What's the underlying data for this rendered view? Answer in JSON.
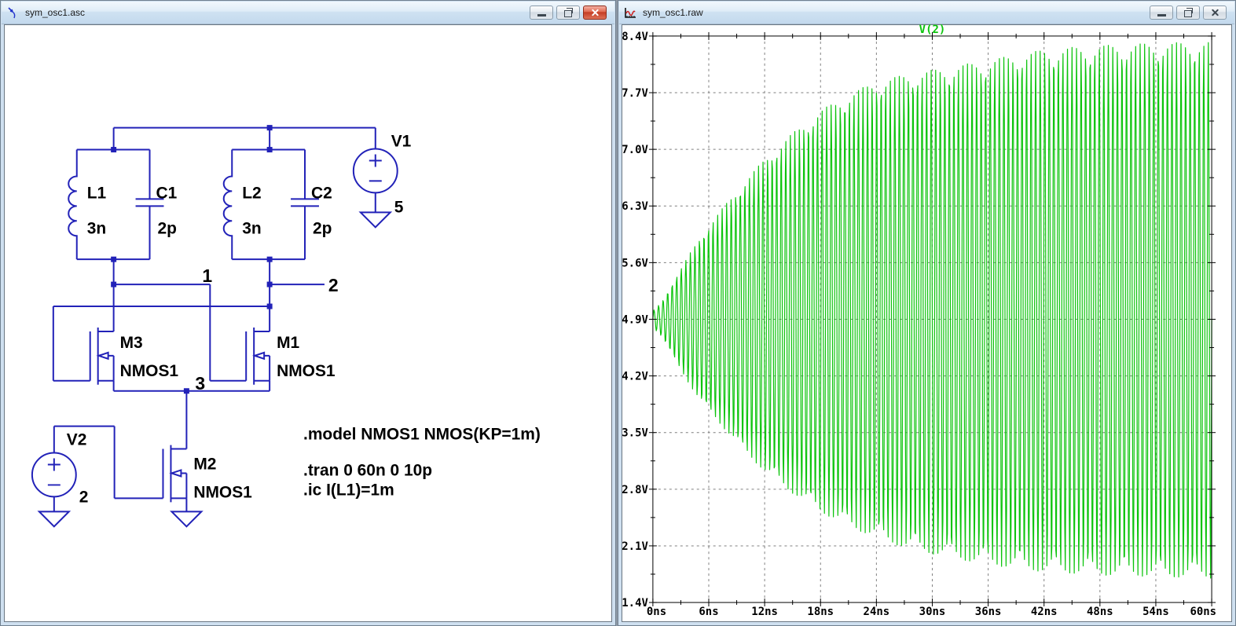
{
  "left_window": {
    "title": "sym_osc1.asc",
    "window_controls": [
      "minimize",
      "restore",
      "close"
    ],
    "schematic": {
      "wire_color": "#2222b8",
      "components": {
        "L1": {
          "ref": "L1",
          "value": "3n"
        },
        "C1": {
          "ref": "C1",
          "value": "2p"
        },
        "L2": {
          "ref": "L2",
          "value": "3n"
        },
        "C2": {
          "ref": "C2",
          "value": "2p"
        },
        "V1": {
          "ref": "V1",
          "value": "5"
        },
        "V2": {
          "ref": "V2",
          "value": "2"
        },
        "M1": {
          "ref": "M1",
          "model": "NMOS1"
        },
        "M2": {
          "ref": "M2",
          "model": "NMOS1"
        },
        "M3": {
          "ref": "M3",
          "model": "NMOS1"
        }
      },
      "node_labels": [
        "1",
        "2",
        "3"
      ],
      "directives": [
        ".model NMOS1 NMOS(KP=1m)",
        ".tran 0 60n 0 10p",
        ".ic I(L1)=1m"
      ]
    }
  },
  "right_window": {
    "title": "sym_osc1.raw",
    "window_controls": [
      "minimize",
      "restore",
      "close"
    ],
    "chart_data": {
      "type": "line",
      "title": "V(2)",
      "legend": [
        "V(2)"
      ],
      "legend_position": "top-center",
      "trace_color": "#0cc40c",
      "grid": true,
      "x_axis": {
        "label": "time",
        "unit": "ns",
        "min": 0,
        "max": 60,
        "major_step": 6,
        "minor_step": 3,
        "tick_labels": [
          "0ns",
          "6ns",
          "12ns",
          "18ns",
          "24ns",
          "30ns",
          "36ns",
          "42ns",
          "48ns",
          "54ns",
          "60ns"
        ]
      },
      "y_axis": {
        "label": "voltage",
        "unit": "V",
        "min": 1.4,
        "max": 8.4,
        "major_step": 0.7,
        "minor_step": 0.35,
        "tick_labels": [
          "1.4V",
          "2.1V",
          "2.8V",
          "3.5V",
          "4.2V",
          "4.9V",
          "5.6V",
          "6.3V",
          "7.0V",
          "7.7V",
          "8.4V"
        ]
      },
      "waveform": {
        "description": "exponentially growing LC oscillator startup transient, saturating",
        "center_v": 4.9,
        "frequency_ghz": 2.05,
        "envelope_t_ns": [
          0,
          1,
          2,
          3,
          4,
          5,
          6,
          8,
          10,
          12,
          15,
          18,
          21,
          24,
          27,
          30,
          33,
          36,
          39,
          42,
          45,
          48,
          51,
          54,
          57,
          60
        ],
        "envelope_top_v": [
          0.1,
          0.22,
          0.42,
          0.62,
          0.82,
          1.0,
          1.15,
          1.45,
          1.72,
          1.98,
          2.3,
          2.58,
          2.78,
          2.94,
          3.02,
          3.08,
          3.14,
          3.2,
          3.27,
          3.33,
          3.36,
          3.38,
          3.4,
          3.41,
          3.42,
          3.43
        ],
        "envelope_bottom_v": [
          0.1,
          0.22,
          0.42,
          0.62,
          0.82,
          1.0,
          1.12,
          1.4,
          1.65,
          1.88,
          2.15,
          2.38,
          2.56,
          2.7,
          2.82,
          2.9,
          2.97,
          3.03,
          3.08,
          3.12,
          3.14,
          3.16,
          3.17,
          3.18,
          3.19,
          3.2
        ]
      }
    }
  }
}
